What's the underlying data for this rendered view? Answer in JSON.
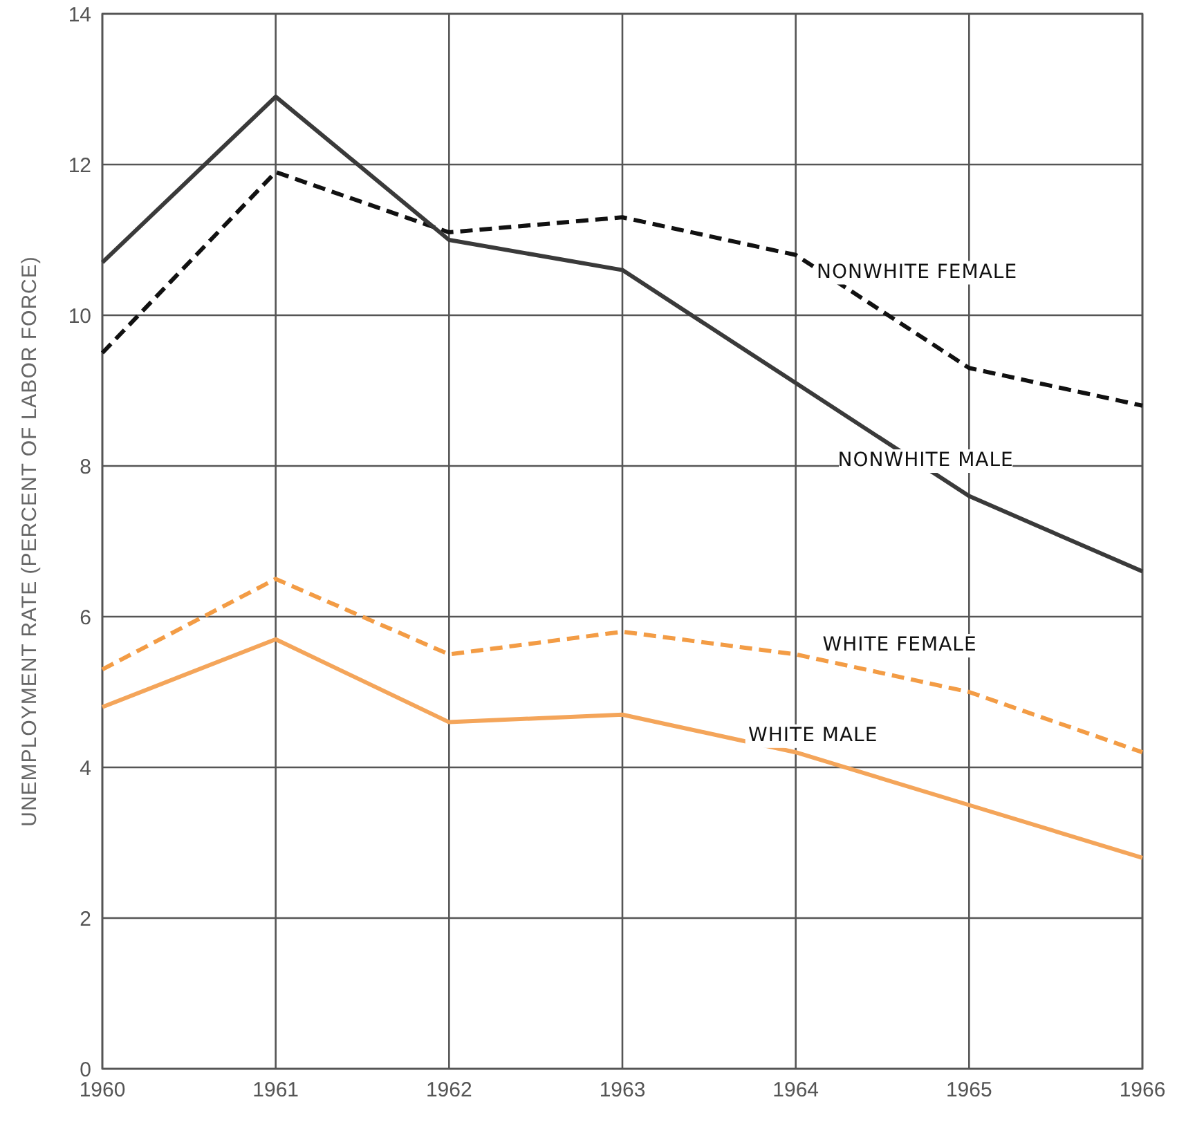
{
  "chart_data": {
    "type": "line",
    "ylabel": "UNEMPLOYMENT RATE (PERCENT OF LABOR FORCE)",
    "x": [
      1960,
      1961,
      1962,
      1963,
      1964,
      1965,
      1966
    ],
    "xlim": [
      1960,
      1966
    ],
    "xticks": [
      1960,
      1961,
      1962,
      1963,
      1964,
      1965,
      1966
    ],
    "ylim": [
      0,
      14
    ],
    "yticks": [
      0,
      2,
      4,
      6,
      8,
      10,
      12,
      14
    ],
    "grid": true,
    "marker": "none",
    "series": [
      {
        "name": "NONWHITE FEMALE",
        "color": "#111111",
        "line_style": "dashed",
        "values": [
          9.5,
          11.9,
          11.1,
          11.3,
          10.8,
          9.3,
          8.8
        ]
      },
      {
        "name": "NONWHITE MALE",
        "color": "#3a3a3a",
        "line_style": "solid",
        "values": [
          10.7,
          12.9,
          11.0,
          10.6,
          9.1,
          7.6,
          6.6
        ]
      },
      {
        "name": "WHITE FEMALE",
        "color": "#f39c45",
        "line_style": "dashed",
        "values": [
          5.3,
          6.5,
          5.5,
          5.8,
          5.5,
          5.0,
          4.2
        ]
      },
      {
        "name": "WHITE MALE",
        "color": "#f4a55a",
        "line_style": "solid",
        "values": [
          4.8,
          5.7,
          4.6,
          4.7,
          4.2,
          3.5,
          2.8
        ]
      }
    ]
  }
}
